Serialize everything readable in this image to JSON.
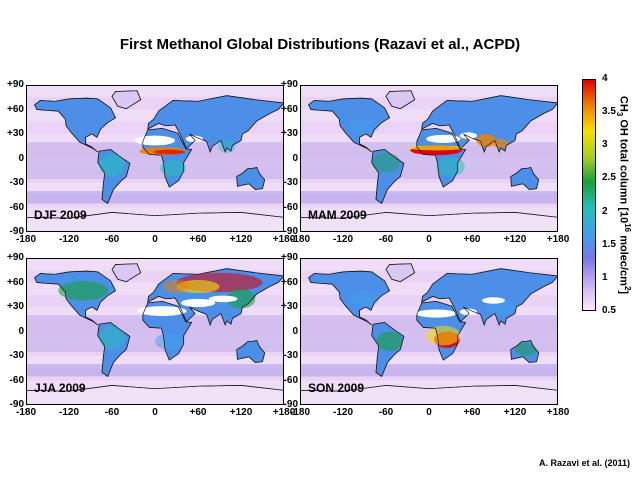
{
  "title": "First Methanol Global Distributions (Razavi et al., ACPD)",
  "panels": [
    {
      "season": "DJF 2009",
      "hotspots": [
        "Sahel belt (high)",
        "Southern Africa (moderate)"
      ]
    },
    {
      "season": "MAM 2009",
      "hotspots": [
        "Sahel belt (very high)",
        "India/SE Asia (high)"
      ]
    },
    {
      "season": "JJA 2009",
      "hotspots": [
        "Siberia (high)",
        "Europe (high)",
        "North America (moderate)"
      ]
    },
    {
      "season": "SON 2009",
      "hotspots": [
        "Southern Africa (very high)",
        "South America (moderate)"
      ]
    }
  ],
  "axes": {
    "lat_ticks": [
      "+90",
      "+60",
      "+30",
      "0",
      "-30",
      "-60",
      "-90"
    ],
    "lon_ticks": [
      "-180",
      "-120",
      "-60",
      "0",
      "+60",
      "+120",
      "+180"
    ]
  },
  "colorbar": {
    "ticks": [
      "4",
      "3.5",
      "3",
      "2.5",
      "2",
      "1.5",
      "1",
      "0.5"
    ],
    "min": 0.5,
    "max": 4,
    "label_main": "CH",
    "label_sub": "3",
    "label_rest": " OH total column [10",
    "label_sup": "16",
    "label_unit": " molec/cm",
    "label_sup2": "2",
    "label_end": "]",
    "colors": [
      "#ffe8ff",
      "#c8b0f0",
      "#7a78e8",
      "#3fa0ee",
      "#23c0b8",
      "#18a040",
      "#a8d020",
      "#f6e000",
      "#f08000",
      "#e00000"
    ]
  },
  "credit": "A. Razavi et al. (2011)"
}
